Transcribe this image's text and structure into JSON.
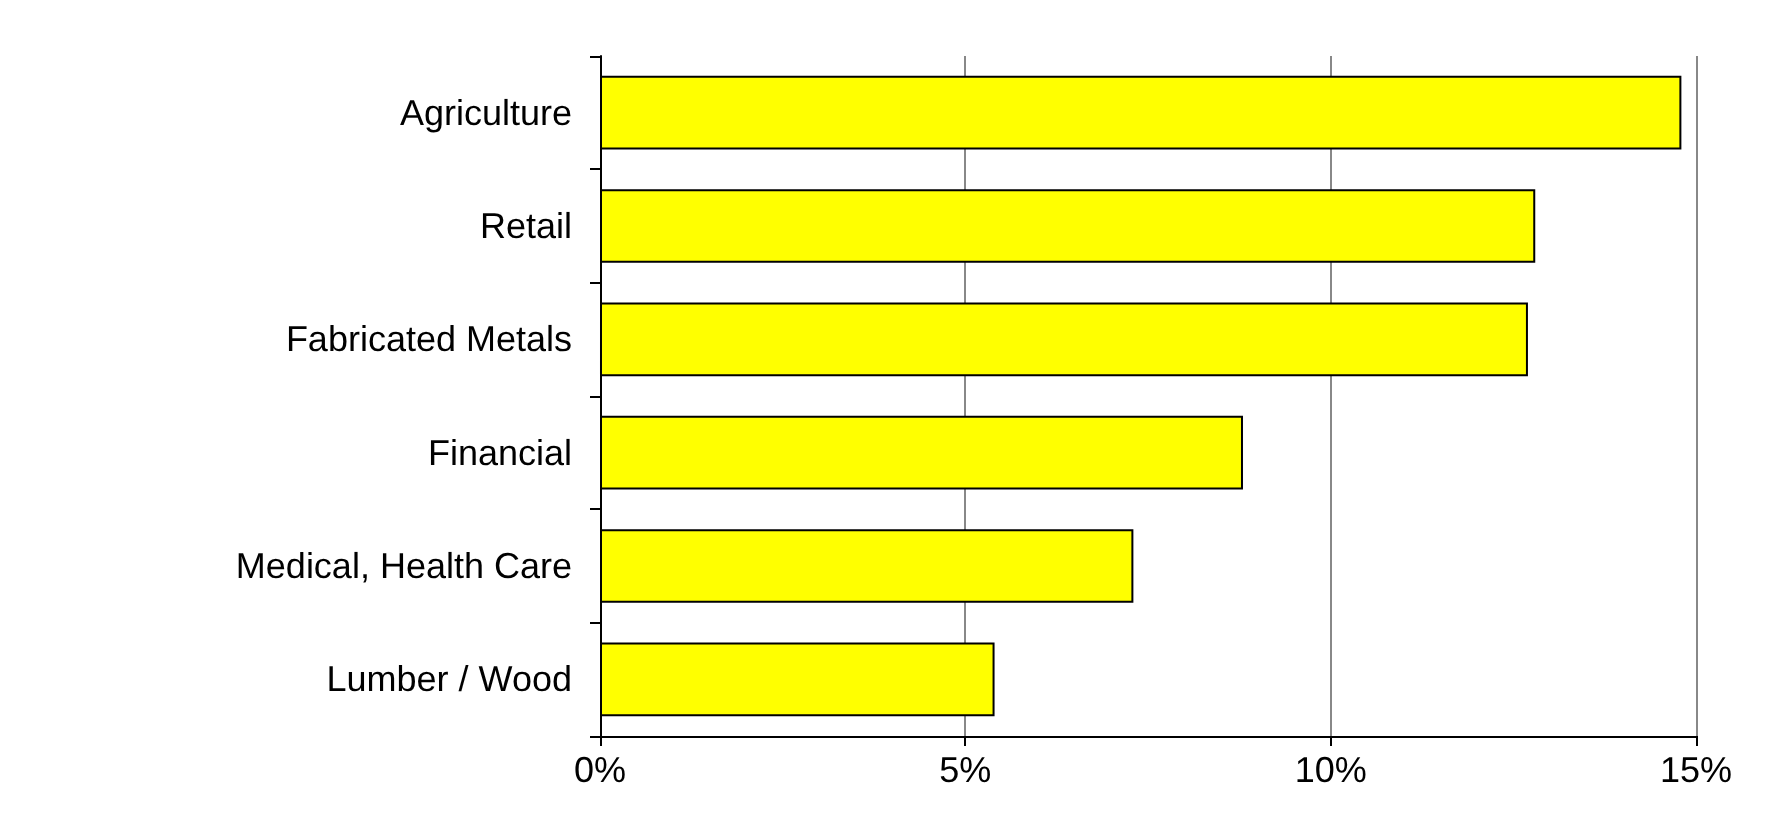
{
  "chart_data": {
    "type": "bar",
    "orientation": "horizontal",
    "categories": [
      "Agriculture",
      "Retail",
      "Fabricated Metals",
      "Financial",
      "Medical, Health Care",
      "Lumber / Wood"
    ],
    "values": [
      14.8,
      12.8,
      12.7,
      8.8,
      7.3,
      5.4
    ],
    "color": "#ffff00",
    "xlim": [
      0,
      15
    ],
    "xticks": [
      {
        "value": 0,
        "label": "0%"
      },
      {
        "value": 5,
        "label": "5%"
      },
      {
        "value": 10,
        "label": "10%"
      },
      {
        "value": 15,
        "label": "15%"
      }
    ],
    "grid": "x"
  }
}
